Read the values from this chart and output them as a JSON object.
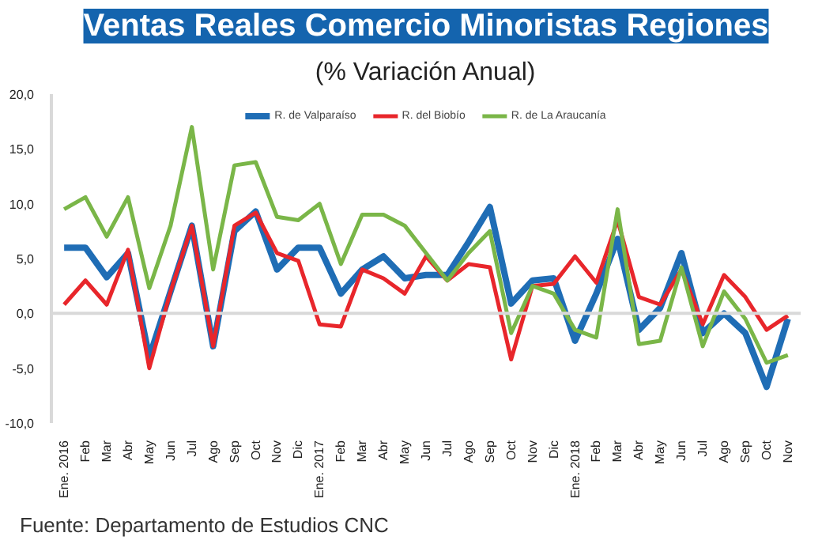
{
  "chart_data": {
    "type": "line",
    "title": "Ventas Reales Comercio Minoristas Regiones",
    "subtitle": "(% Variación Anual)",
    "categories": [
      "Ene. 2016",
      "Feb",
      "Mar",
      "Abr",
      "May",
      "Jun",
      "Jul",
      "Ago",
      "Sep",
      "Oct",
      "Nov",
      "Dic",
      "Ene. 2017",
      "Feb",
      "Mar",
      "Abr",
      "May",
      "Jun",
      "Jul",
      "Ago",
      "Sep",
      "Oct",
      "Nov",
      "Dic",
      "Ene. 2018",
      "Feb",
      "Mar",
      "Abr",
      "May",
      "Jun",
      "Jul",
      "Ago",
      "Sep",
      "Oct",
      "Nov"
    ],
    "series": [
      {
        "name": "R. de Valparaíso",
        "color": "#1f6db5",
        "values": [
          6,
          6,
          3.3,
          5.5,
          -4,
          2,
          8,
          -3,
          7.5,
          9.3,
          4,
          6,
          6,
          1.8,
          4,
          5.2,
          3.2,
          3.5,
          3.5,
          6.5,
          9.7,
          0.9,
          3,
          3.2,
          -2.5,
          1.8,
          6.8,
          -1.5,
          0.5,
          5.5,
          -1.8,
          0,
          -1.8,
          -6.7,
          -0.5
        ]
      },
      {
        "name": "R. del Biobío",
        "color": "#e8262b",
        "values": [
          0.8,
          3,
          0.8,
          5.8,
          -5,
          2,
          8,
          -3,
          8,
          9.2,
          5.5,
          4.8,
          -1,
          -1.2,
          4,
          3.2,
          1.8,
          5.2,
          3,
          4.5,
          4.2,
          -4.2,
          2.5,
          2.7,
          5.2,
          2.8,
          8.5,
          1.5,
          0.8,
          4,
          -1,
          3.5,
          1.5,
          -1.5,
          -0.2
        ]
      },
      {
        "name": "R. de La Araucanía",
        "color": "#7ab648",
        "values": [
          9.5,
          10.6,
          7,
          10.6,
          2.3,
          8,
          17,
          4,
          13.5,
          13.8,
          8.8,
          8.5,
          10,
          4.5,
          9,
          9,
          8,
          5.5,
          3,
          5.5,
          7.5,
          -1.8,
          2.5,
          1.8,
          -1.5,
          -2.2,
          9.5,
          -2.8,
          -2.5,
          4.2,
          -3,
          2,
          -0.5,
          -4.5,
          -3.8
        ]
      }
    ],
    "ylim": [
      -10,
      20
    ],
    "yticks": [
      {
        "value": -10,
        "label": "-10,0"
      },
      {
        "value": -5,
        "label": "-5,0"
      },
      {
        "value": 0,
        "label": "0,0"
      },
      {
        "value": 5,
        "label": "5,0"
      },
      {
        "value": 10,
        "label": "10,0"
      },
      {
        "value": 15,
        "label": "15,0"
      },
      {
        "value": 20,
        "label": "20,0"
      }
    ],
    "ref_lines": [
      {
        "axis": "y",
        "value": 0,
        "color": "#d9d9d9"
      }
    ],
    "grid": false,
    "legend": "top",
    "marker": "none",
    "line_style": "solid",
    "annotations": [
      "Fuente: Departamento de Estudios CNC"
    ]
  }
}
